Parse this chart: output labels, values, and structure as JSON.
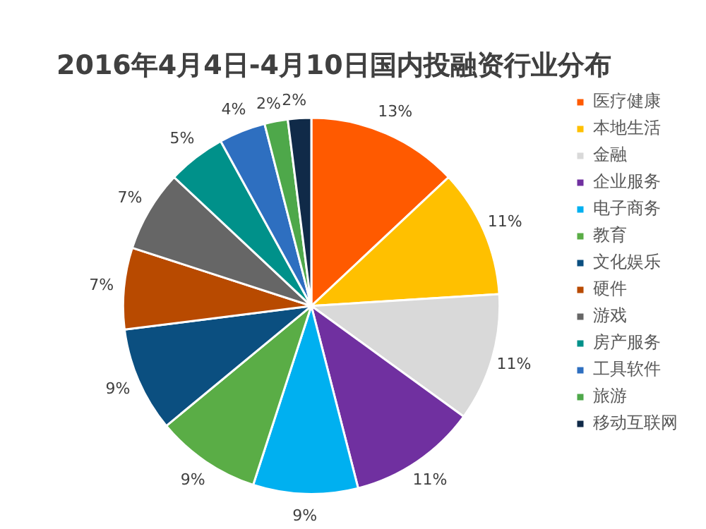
{
  "chart_data": {
    "type": "pie",
    "title": "2016年4月4日-4月10日国内投融资行业分布",
    "categories": [
      "医疗健康",
      "本地生活",
      "金融",
      "企业服务",
      "电子商务",
      "教育",
      "文化娱乐",
      "硬件",
      "游戏",
      "房产服务",
      "工具软件",
      "旅游",
      "移动互联网"
    ],
    "values": [
      13,
      11,
      11,
      11,
      9,
      9,
      9,
      7,
      7,
      5,
      4,
      2,
      2
    ],
    "value_labels": [
      "13%",
      "11%",
      "11%",
      "11%",
      "9%",
      "9%",
      "9%",
      "7%",
      "7%",
      "5%",
      "4%",
      "2%",
      "2%"
    ],
    "colors": [
      "#ff5a00",
      "#ffc000",
      "#d9d9d9",
      "#7030a0",
      "#00b0f0",
      "#5aad46",
      "#0b4f80",
      "#b84a00",
      "#666666",
      "#00918a",
      "#2e6fc0",
      "#4ea84a",
      "#102a48"
    ],
    "legend": "right"
  }
}
